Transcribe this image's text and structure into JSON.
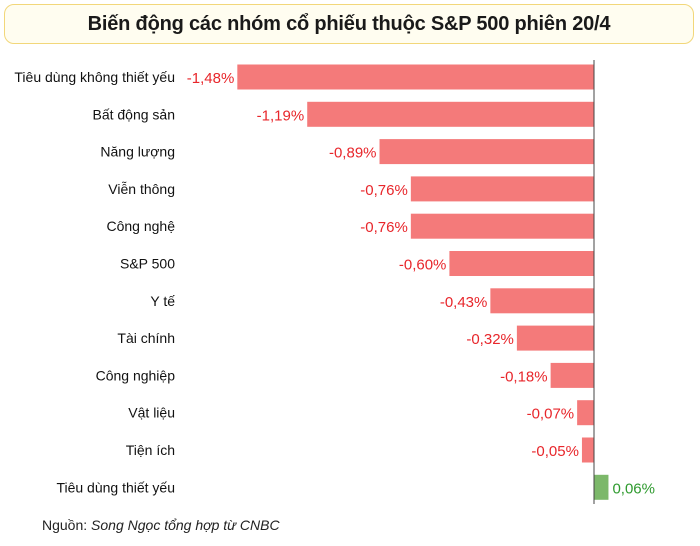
{
  "chart_data": {
    "type": "bar",
    "orientation": "horizontal",
    "title": "Biến động các nhóm cổ phiếu thuộc S&P 500 phiên 20/4",
    "categories": [
      "Tiêu dùng không thiết yếu",
      "Bất động sản",
      "Năng lượng",
      "Viễn thông",
      "Công nghệ",
      "S&P 500",
      "Y tế",
      "Tài chính",
      "Công nghiệp",
      "Vật liệu",
      "Tiện ích",
      "Tiêu dùng thiết yếu"
    ],
    "values": [
      -1.48,
      -1.19,
      -0.89,
      -0.76,
      -0.76,
      -0.6,
      -0.43,
      -0.32,
      -0.18,
      -0.07,
      -0.05,
      0.06
    ],
    "value_labels": [
      "-1,48%",
      "-1,19%",
      "-0,89%",
      "-0,76%",
      "-0,76%",
      "-0,60%",
      "-0,43%",
      "-0,32%",
      "-0,18%",
      "-0,07%",
      "-0,05%",
      "0,06%"
    ],
    "unit": "%",
    "xlim": [
      -1.48,
      0.06
    ],
    "colors": {
      "negative": "#f47a7a",
      "positive": "#7cb86a",
      "negative_label": "#e8262b",
      "positive_label": "#2e9a2e",
      "axis": "#444444"
    }
  },
  "source": {
    "prefix": "Nguồn:",
    "text": "Song Ngọc tổng hợp từ CNBC"
  }
}
